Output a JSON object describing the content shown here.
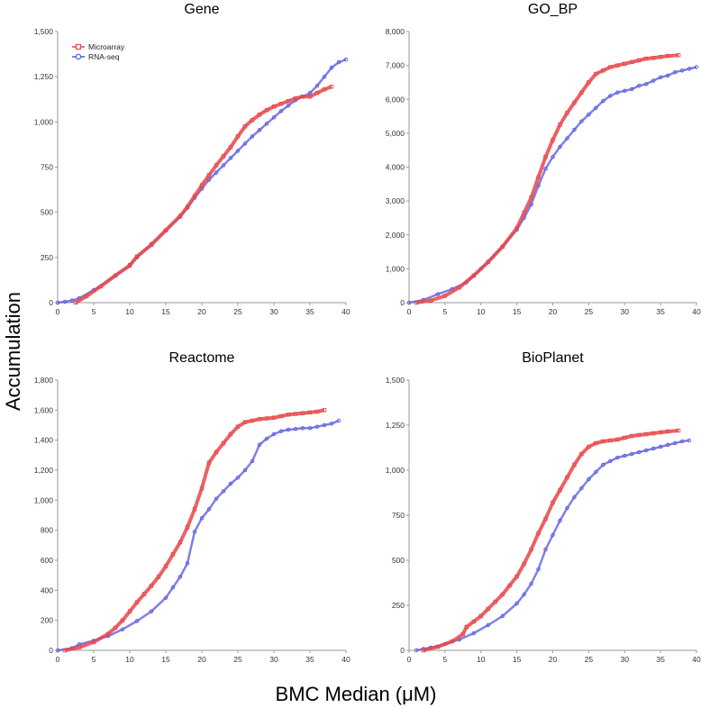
{
  "xlabel": "BMC Median (μM)",
  "ylabel": "Accumulation",
  "legend": {
    "position": "top-left of Gene panel",
    "items": [
      {
        "name": "Microarray",
        "color": "#e8464a",
        "marker": "square"
      },
      {
        "name": "RNA-seq",
        "color": "#5555dd",
        "marker": "circle"
      }
    ]
  },
  "chart_data": [
    {
      "type": "line",
      "title": "Gene",
      "xlim": [
        0,
        40
      ],
      "ylim": [
        0,
        1500
      ],
      "x_ticks": [
        "0",
        "5",
        "10",
        "15",
        "20",
        "25",
        "30",
        "35",
        "40"
      ],
      "y_ticks": [
        "0",
        "250",
        "500",
        "750",
        "1,000",
        "1,250",
        "1,500"
      ],
      "y_tick_values": [
        0,
        250,
        500,
        750,
        1000,
        1250,
        1500
      ],
      "series": [
        {
          "name": "Microarray",
          "x": [
            2.5,
            4,
            6,
            8,
            10,
            11,
            13,
            15,
            17,
            18,
            19,
            20,
            21,
            22,
            23,
            24,
            25,
            26,
            27,
            28,
            29,
            30,
            31,
            32,
            33,
            34,
            35,
            36,
            37,
            38
          ],
          "y": [
            0,
            35,
            90,
            150,
            205,
            255,
            320,
            400,
            480,
            530,
            590,
            650,
            705,
            760,
            810,
            860,
            920,
            975,
            1010,
            1040,
            1065,
            1085,
            1100,
            1115,
            1130,
            1140,
            1140,
            1160,
            1180,
            1195
          ]
        },
        {
          "name": "RNA-seq",
          "x": [
            0,
            1,
            2,
            3,
            5,
            8,
            10,
            11,
            13,
            15,
            17,
            18,
            19,
            20,
            21,
            22,
            23,
            24,
            25,
            26,
            27,
            28,
            29,
            30,
            31,
            32,
            33,
            34,
            35,
            36,
            37,
            38,
            39,
            40
          ],
          "y": [
            0,
            5,
            12,
            25,
            70,
            150,
            210,
            250,
            325,
            400,
            475,
            525,
            580,
            630,
            680,
            720,
            760,
            800,
            840,
            880,
            920,
            955,
            990,
            1025,
            1060,
            1090,
            1120,
            1140,
            1160,
            1200,
            1250,
            1300,
            1330,
            1345
          ]
        }
      ]
    },
    {
      "type": "line",
      "title": "GO_BP",
      "xlim": [
        0,
        40
      ],
      "ylim": [
        0,
        8000
      ],
      "x_ticks": [
        "0",
        "5",
        "10",
        "15",
        "20",
        "25",
        "30",
        "35",
        "40"
      ],
      "y_ticks": [
        "0",
        "1,000",
        "2,000",
        "3,000",
        "4,000",
        "5,000",
        "6,000",
        "7,000",
        "8,000"
      ],
      "y_tick_values": [
        0,
        1000,
        2000,
        3000,
        4000,
        5000,
        6000,
        7000,
        8000
      ],
      "series": [
        {
          "name": "Microarray",
          "x": [
            1,
            3,
            5,
            7,
            9,
            11,
            13,
            15,
            16,
            17,
            18,
            19,
            20,
            21,
            22,
            23,
            24,
            25,
            26,
            27,
            28,
            29,
            30,
            31,
            32,
            33,
            34,
            35,
            36,
            37.5
          ],
          "y": [
            0,
            60,
            200,
            450,
            800,
            1200,
            1650,
            2200,
            2650,
            3100,
            3700,
            4300,
            4800,
            5250,
            5600,
            5900,
            6200,
            6500,
            6750,
            6850,
            6950,
            7000,
            7050,
            7100,
            7150,
            7200,
            7220,
            7250,
            7280,
            7300
          ]
        },
        {
          "name": "RNA-seq",
          "x": [
            0,
            2,
            4,
            6,
            8,
            10,
            11,
            13,
            15,
            16,
            17,
            18,
            19,
            20,
            21,
            22,
            23,
            24,
            25,
            26,
            27,
            28,
            29,
            30,
            31,
            32,
            33,
            34,
            35,
            36,
            37,
            38,
            39,
            40
          ],
          "y": [
            0,
            80,
            250,
            400,
            600,
            1000,
            1200,
            1650,
            2150,
            2500,
            2900,
            3450,
            3950,
            4300,
            4600,
            4850,
            5100,
            5350,
            5550,
            5750,
            5950,
            6100,
            6200,
            6250,
            6300,
            6400,
            6450,
            6550,
            6650,
            6700,
            6800,
            6850,
            6900,
            6950
          ]
        }
      ]
    },
    {
      "type": "line",
      "title": "Reactome",
      "xlim": [
        0,
        40
      ],
      "ylim": [
        0,
        1800
      ],
      "x_ticks": [
        "0",
        "5",
        "10",
        "15",
        "20",
        "25",
        "30",
        "35",
        "40"
      ],
      "y_ticks": [
        "0",
        "200",
        "400",
        "600",
        "800",
        "1,000",
        "1,200",
        "1,400",
        "1,600",
        "1,800"
      ],
      "y_tick_values": [
        0,
        200,
        400,
        600,
        800,
        1000,
        1200,
        1400,
        1600,
        1800
      ],
      "series": [
        {
          "name": "Microarray",
          "x": [
            1,
            3,
            5,
            7,
            8,
            9,
            10,
            11,
            12,
            13,
            14,
            15,
            16,
            17,
            18,
            19,
            20,
            21,
            22,
            23,
            24,
            25,
            26,
            27,
            28,
            29,
            30,
            31,
            32,
            33,
            34,
            35,
            36,
            37
          ],
          "y": [
            0,
            20,
            55,
            110,
            150,
            200,
            260,
            320,
            375,
            430,
            490,
            560,
            640,
            720,
            820,
            940,
            1080,
            1250,
            1320,
            1380,
            1440,
            1490,
            1520,
            1530,
            1540,
            1545,
            1550,
            1560,
            1570,
            1575,
            1580,
            1585,
            1590,
            1600
          ]
        },
        {
          "name": "RNA-seq",
          "x": [
            0,
            2,
            3,
            5,
            7,
            9,
            11,
            13,
            15,
            16,
            17,
            18,
            19,
            20,
            21,
            22,
            23,
            24,
            25,
            26,
            27,
            28,
            29,
            30,
            31,
            32,
            33,
            34,
            35,
            36,
            37,
            38,
            39
          ],
          "y": [
            0,
            15,
            40,
            65,
            95,
            140,
            195,
            260,
            350,
            420,
            490,
            580,
            790,
            880,
            940,
            1010,
            1060,
            1110,
            1150,
            1200,
            1260,
            1370,
            1410,
            1440,
            1460,
            1470,
            1475,
            1480,
            1480,
            1490,
            1500,
            1510,
            1530
          ]
        }
      ]
    },
    {
      "type": "line",
      "title": "BioPlanet",
      "xlim": [
        0,
        40
      ],
      "ylim": [
        0,
        1500
      ],
      "x_ticks": [
        "0",
        "5",
        "10",
        "15",
        "20",
        "25",
        "30",
        "35",
        "40"
      ],
      "y_ticks": [
        "0",
        "250",
        "500",
        "750",
        "1,000",
        "1,250",
        "1,500"
      ],
      "y_tick_values": [
        0,
        250,
        500,
        750,
        1000,
        1250,
        1500
      ],
      "series": [
        {
          "name": "Microarray",
          "x": [
            2,
            4,
            6,
            7.5,
            8,
            9,
            10,
            11,
            12,
            13,
            14,
            15,
            16,
            17,
            18,
            19,
            20,
            21,
            22,
            23,
            24,
            25,
            26,
            27,
            28,
            29,
            30,
            31,
            32,
            33,
            34,
            35,
            36,
            37.5
          ],
          "y": [
            0,
            20,
            50,
            90,
            130,
            160,
            190,
            230,
            270,
            310,
            360,
            410,
            480,
            560,
            650,
            730,
            820,
            890,
            960,
            1030,
            1090,
            1130,
            1150,
            1160,
            1165,
            1170,
            1180,
            1190,
            1195,
            1200,
            1205,
            1210,
            1215,
            1220
          ]
        },
        {
          "name": "RNA-seq",
          "x": [
            1,
            2,
            3,
            5,
            7,
            9,
            11,
            13,
            15,
            16,
            17,
            18,
            19,
            20,
            21,
            22,
            23,
            24,
            25,
            26,
            27,
            28,
            29,
            30,
            31,
            32,
            33,
            34,
            35,
            36,
            37,
            38,
            39
          ],
          "y": [
            0,
            8,
            15,
            35,
            60,
            95,
            140,
            190,
            260,
            310,
            370,
            450,
            560,
            640,
            720,
            790,
            850,
            900,
            950,
            990,
            1030,
            1050,
            1070,
            1080,
            1090,
            1100,
            1110,
            1120,
            1130,
            1140,
            1150,
            1160,
            1165
          ]
        }
      ]
    }
  ]
}
